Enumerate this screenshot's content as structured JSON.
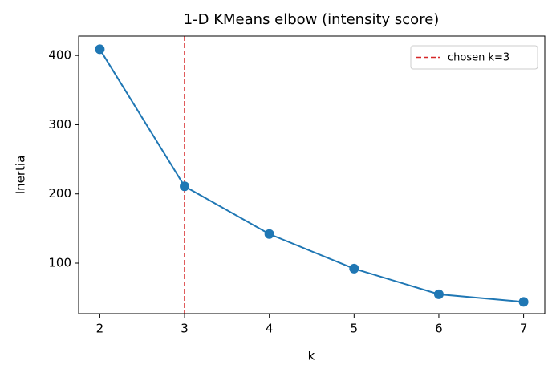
{
  "chart_data": {
    "type": "line",
    "title": "1-D KMeans elbow (intensity score)",
    "xlabel": "k",
    "ylabel": "Inertia",
    "x": [
      2,
      3,
      4,
      5,
      6,
      7
    ],
    "series": [
      {
        "color": "#1f77b4",
        "values": [
          409,
          211,
          142,
          92,
          55,
          44
        ]
      }
    ],
    "xlim": [
      1.75,
      7.25
    ],
    "xticks": [
      2,
      3,
      4,
      5,
      6,
      7
    ],
    "ylim": [
      27,
      428
    ],
    "yticks": [
      100,
      200,
      300,
      400
    ],
    "vline": {
      "x": 3,
      "label": "chosen k=3",
      "color": "#d62728"
    },
    "legend": "upper right"
  }
}
